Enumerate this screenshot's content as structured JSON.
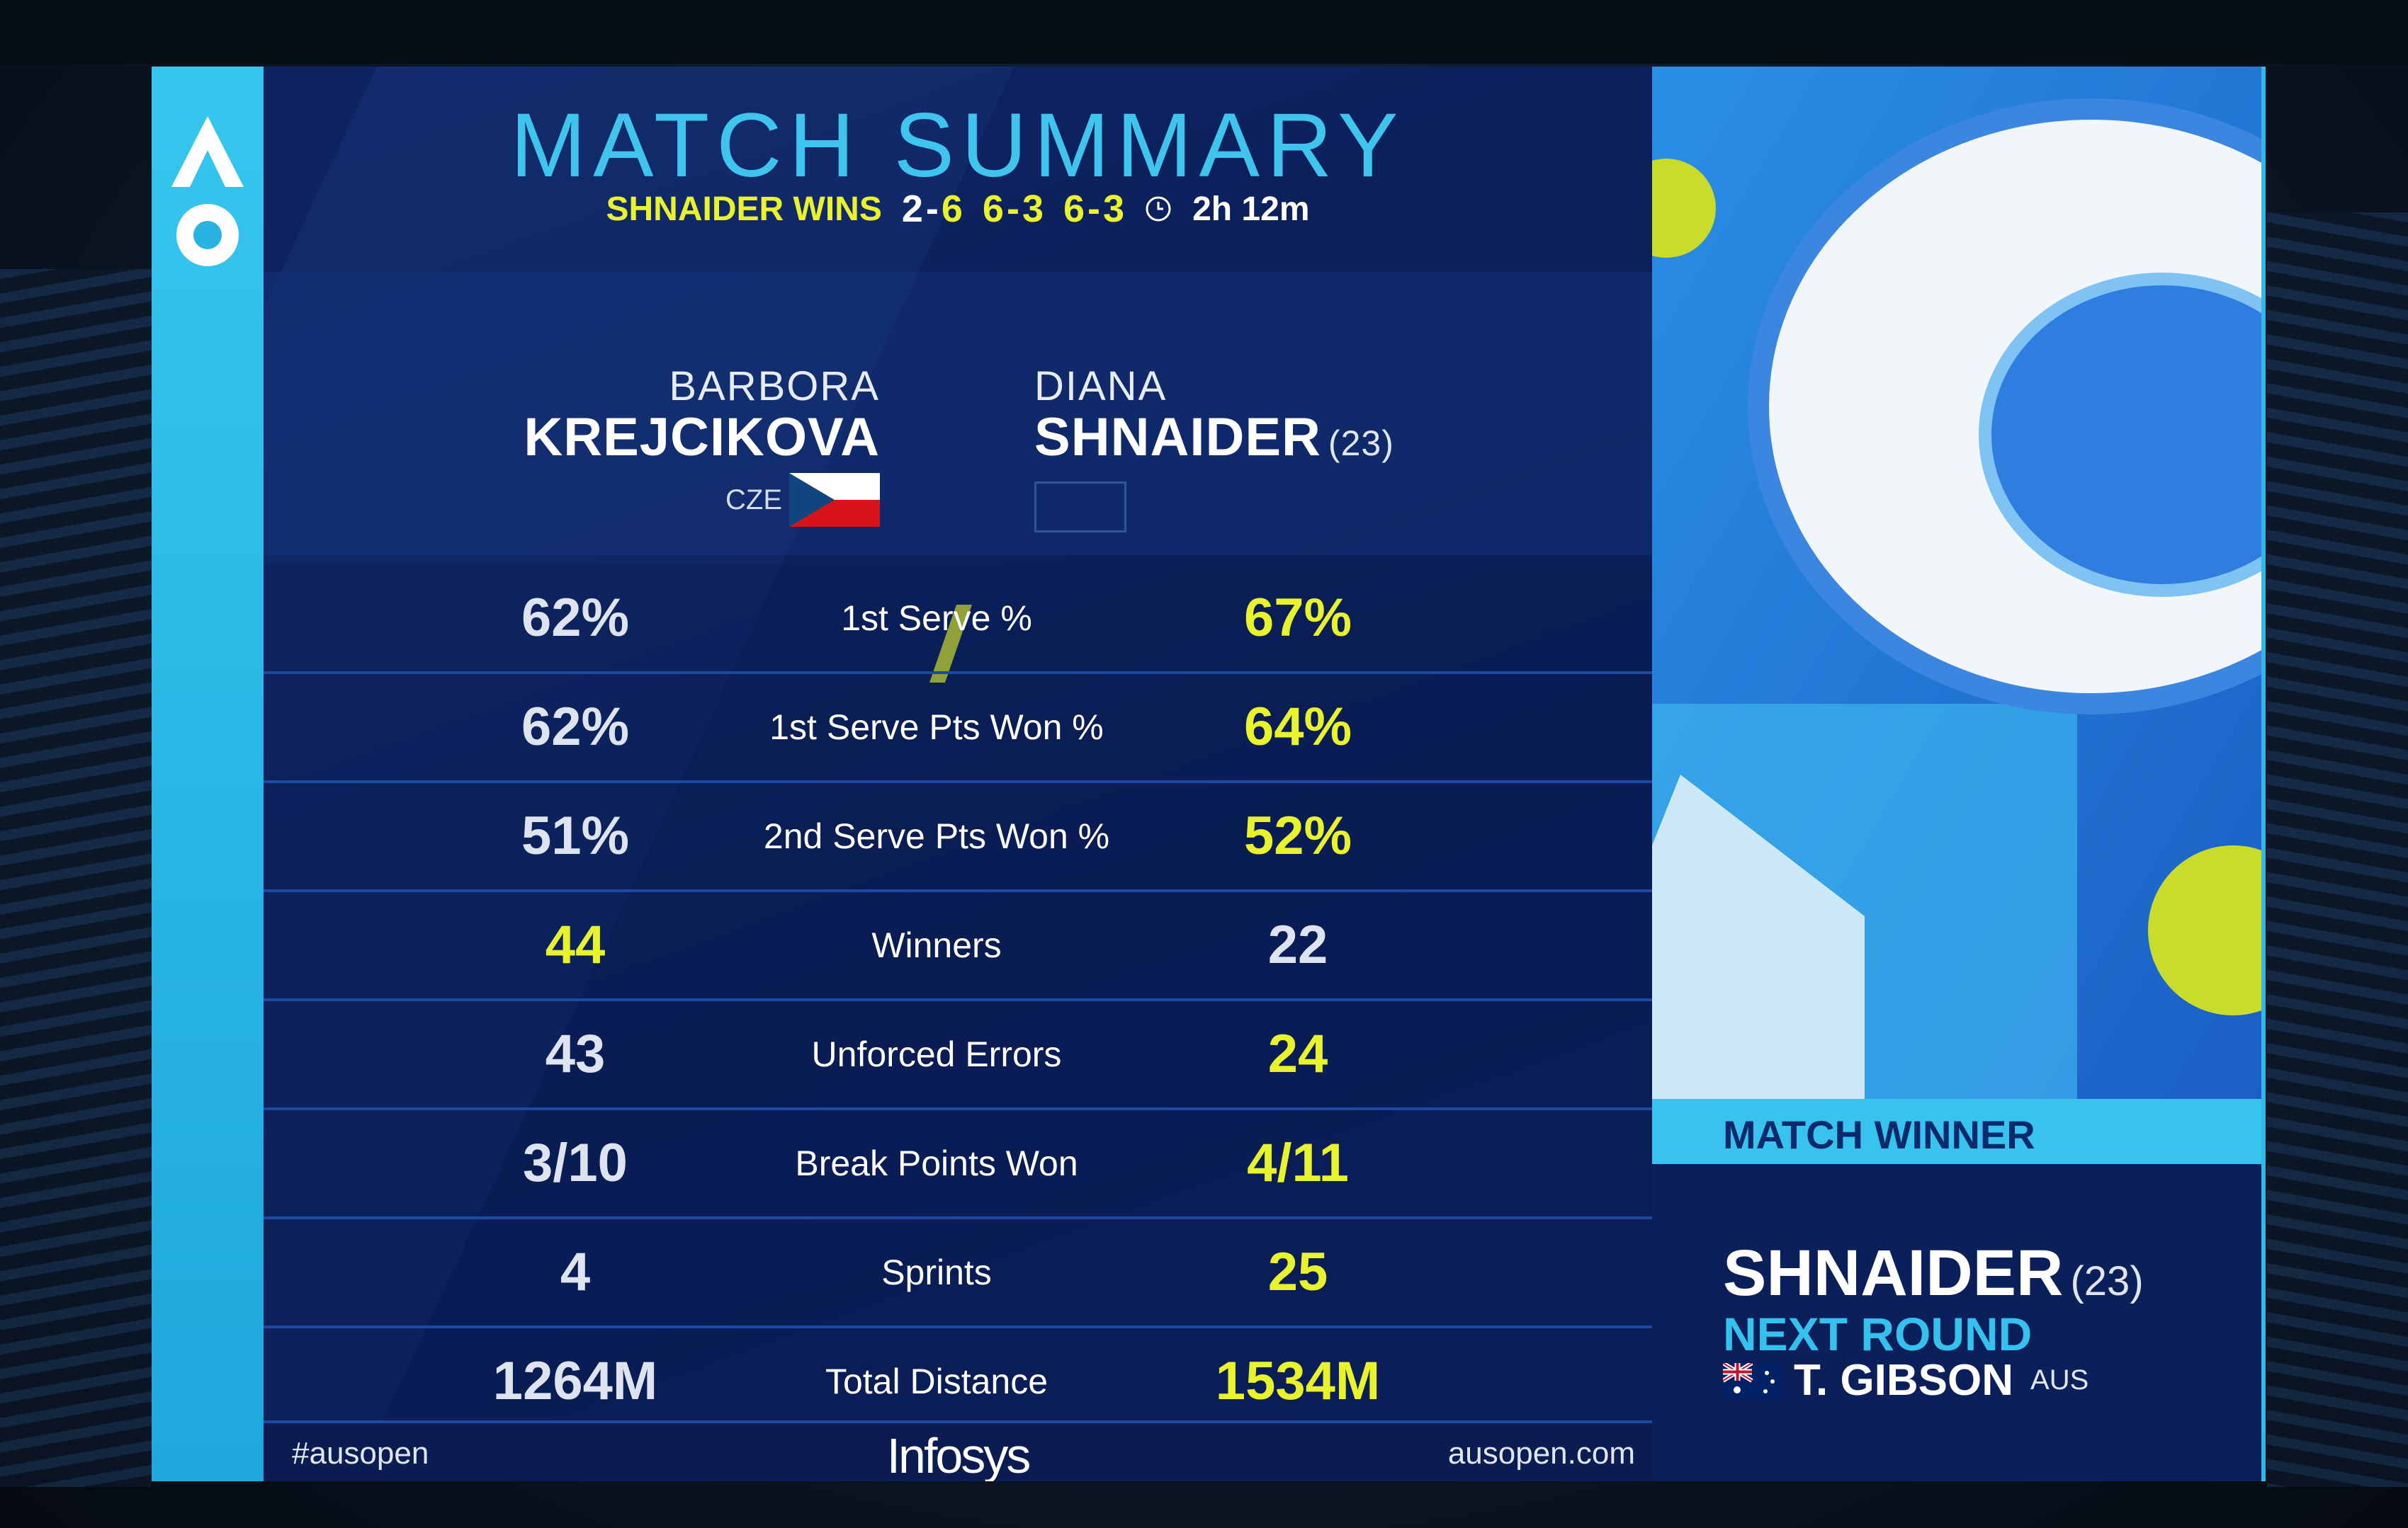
{
  "header": {
    "title": "MATCH SUMMARY",
    "winner_text": "SHNAIDER WINS",
    "sets": [
      {
        "a": "2",
        "b": "6"
      },
      {
        "a": "6",
        "b": "3"
      },
      {
        "a": "6",
        "b": "3"
      }
    ],
    "duration": "2h 12m"
  },
  "player1": {
    "first": "BARBORA",
    "last": "KREJCIKOVA",
    "nation": "CZE"
  },
  "player2": {
    "first": "DIANA",
    "last": "SHNAIDER",
    "seed": "(23)"
  },
  "stats": [
    {
      "left": "62%",
      "label": "1st Serve %",
      "right": "67%",
      "leader": "right"
    },
    {
      "left": "62%",
      "label": "1st Serve Pts Won %",
      "right": "64%",
      "leader": "right"
    },
    {
      "left": "51%",
      "label": "2nd Serve Pts Won %",
      "right": "52%",
      "leader": "right"
    },
    {
      "left": "44",
      "label": "Winners",
      "right": "22",
      "leader": "left"
    },
    {
      "left": "43",
      "label": "Unforced Errors",
      "right": "24",
      "leader": "right"
    },
    {
      "left": "3/10",
      "label": "Break Points Won",
      "right": "4/11",
      "leader": "right"
    },
    {
      "left": "4",
      "label": "Sprints",
      "right": "25",
      "leader": "right"
    },
    {
      "left": "1264M",
      "label": "Total Distance",
      "right": "1534M",
      "leader": "right"
    }
  ],
  "footer": {
    "hashtag": "#ausopen",
    "sponsor": "Infosys",
    "site": "ausopen.com"
  },
  "winner_panel": {
    "label": "MATCH WINNER",
    "name": "SHNAIDER",
    "seed": "(23)",
    "next_round": "NEXT ROUND",
    "opponent": "T. GIBSON",
    "opponent_nation": "AUS"
  },
  "colors": {
    "accent": "#3fc4ee",
    "highlight": "#e9f32b",
    "panel": "#0e2462"
  }
}
